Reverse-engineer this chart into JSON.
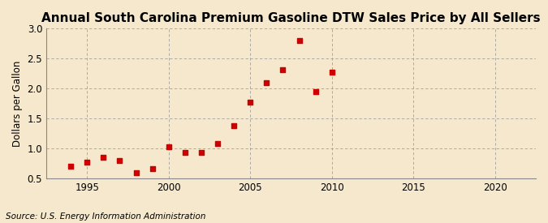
{
  "title": "Annual South Carolina Premium Gasoline DTW Sales Price by All Sellers",
  "ylabel": "Dollars per Gallon",
  "source": "Source: U.S. Energy Information Administration",
  "years": [
    1994,
    1995,
    1996,
    1997,
    1998,
    1999,
    2000,
    2001,
    2002,
    2003,
    2004,
    2005,
    2006,
    2007,
    2008,
    2009,
    2010
  ],
  "values": [
    0.7,
    0.77,
    0.85,
    0.8,
    0.6,
    0.67,
    1.03,
    0.94,
    0.93,
    1.09,
    1.38,
    1.77,
    2.1,
    2.31,
    2.8,
    1.95,
    2.28
  ],
  "marker_color": "#cc0000",
  "background_color": "#f5e8cc",
  "grid_color": "#999999",
  "xlim": [
    1992.5,
    2022.5
  ],
  "ylim": [
    0.5,
    3.0
  ],
  "xticks": [
    1995,
    2000,
    2005,
    2010,
    2015,
    2020
  ],
  "yticks": [
    0.5,
    1.0,
    1.5,
    2.0,
    2.5,
    3.0
  ],
  "title_fontsize": 11,
  "label_fontsize": 8.5,
  "tick_fontsize": 8.5,
  "source_fontsize": 7.5
}
